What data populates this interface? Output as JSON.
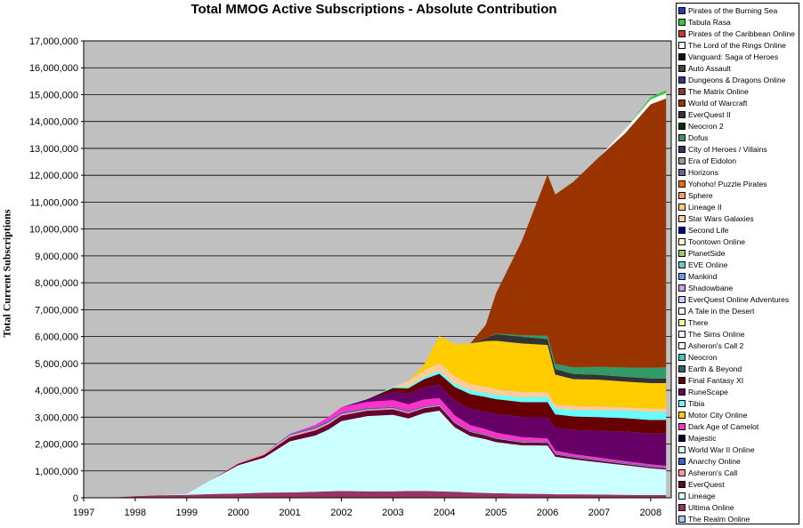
{
  "chart_data": {
    "type": "area",
    "stacked": true,
    "title": "Total MMOG Active Subscriptions -  Absolute Contribution",
    "xlabel": "",
    "ylabel": "Total Current Subscriptions",
    "xlim": [
      1997,
      2008.4
    ],
    "ylim": [
      0,
      17000000
    ],
    "grid": "horizontal",
    "plot_background": "#c0c0c0",
    "legend_position": "right",
    "yticks": [
      "0",
      "1,000,000",
      "2,000,000",
      "3,000,000",
      "4,000,000",
      "5,000,000",
      "6,000,000",
      "7,000,000",
      "8,000,000",
      "9,000,000",
      "10,000,000",
      "11,000,000",
      "12,000,000",
      "13,000,000",
      "14,000,000",
      "15,000,000",
      "16,000,000",
      "17,000,000"
    ],
    "xticks": [
      "1997",
      "1998",
      "1999",
      "2000",
      "2001",
      "2002",
      "2003",
      "2004",
      "2005",
      "2006",
      "2007",
      "2008"
    ],
    "legend": [
      {
        "name": "Pirates of the Burning Sea",
        "color": "#1f3fbf"
      },
      {
        "name": "Tabula Rasa",
        "color": "#33cc33"
      },
      {
        "name": "Pirates of the Caribbean Online",
        "color": "#cc3333"
      },
      {
        "name": "The Lord of the Rings Online",
        "color": "#ffffff"
      },
      {
        "name": "Vanguard: Saga of Heroes",
        "color": "#111111"
      },
      {
        "name": "Auto Assault",
        "color": "#444444"
      },
      {
        "name": "Dungeons & Dragons Online",
        "color": "#333399"
      },
      {
        "name": "The Matrix Online",
        "color": "#993333"
      },
      {
        "name": "World of Warcraft",
        "color": "#993300"
      },
      {
        "name": "EverQuest II",
        "color": "#333333"
      },
      {
        "name": "Neocron 2",
        "color": "#003300"
      },
      {
        "name": "Dofus",
        "color": "#339966"
      },
      {
        "name": "City of Heroes / Villains",
        "color": "#333366"
      },
      {
        "name": "Era of Eidolon",
        "color": "#999999"
      },
      {
        "name": "Horizons",
        "color": "#666699"
      },
      {
        "name": "Yohoho! Puzzle Pirates",
        "color": "#ff6600"
      },
      {
        "name": "Sphere",
        "color": "#ff9966"
      },
      {
        "name": "Lineage II",
        "color": "#ffcc66"
      },
      {
        "name": "Star Wars Galaxies",
        "color": "#ffcc99"
      },
      {
        "name": "Second Life",
        "color": "#000099"
      },
      {
        "name": "Toontown Online",
        "color": "#ffffcc"
      },
      {
        "name": "PlanetSide",
        "color": "#99cc66"
      },
      {
        "name": "EVE Online",
        "color": "#66cccc"
      },
      {
        "name": "Mankind",
        "color": "#6699ff"
      },
      {
        "name": "Shadowbane",
        "color": "#cc99ff"
      },
      {
        "name": "EverQuest Online Adventures",
        "color": "#ccccff"
      },
      {
        "name": "A Tale in the Desert",
        "color": "#ffffff"
      },
      {
        "name": "There",
        "color": "#ffff99"
      },
      {
        "name": "The Sims Online",
        "color": "#ffffff"
      },
      {
        "name": "Asheron's Call 2",
        "color": "#ffffff"
      },
      {
        "name": "Neocron",
        "color": "#33cccc"
      },
      {
        "name": "Earth & Beyond",
        "color": "#336666"
      },
      {
        "name": "Final Fantasy XI",
        "color": "#660000"
      },
      {
        "name": "RuneScape",
        "color": "#660066"
      },
      {
        "name": "Tibia",
        "color": "#66ffff"
      },
      {
        "name": "Motor City Online",
        "color": "#ffcc00"
      },
      {
        "name": "Dark Age of Camelot",
        "color": "#ff33cc"
      },
      {
        "name": "Majestic",
        "color": "#000033"
      },
      {
        "name": "World War II Online",
        "color": "#ccffff"
      },
      {
        "name": "Anarchy Online",
        "color": "#3366cc"
      },
      {
        "name": "Asheron's Call",
        "color": "#ff9999"
      },
      {
        "name": "EverQuest",
        "color": "#660033"
      },
      {
        "name": "Lineage",
        "color": "#ccffff"
      },
      {
        "name": "Ultima Online",
        "color": "#993366"
      },
      {
        "name": "The Realm Online",
        "color": "#99ccff"
      }
    ],
    "x": [
      1997.0,
      1997.5,
      1998.0,
      1998.5,
      1999.0,
      1999.5,
      2000.0,
      2000.5,
      2001.0,
      2001.5,
      2001.75,
      2002.0,
      2002.5,
      2003.0,
      2003.3,
      2003.6,
      2003.9,
      2004.2,
      2004.5,
      2004.8,
      2005.0,
      2005.5,
      2006.0,
      2006.15,
      2006.5,
      2007.0,
      2007.5,
      2008.0,
      2008.3
    ],
    "series": [
      {
        "name": "Ultima Online",
        "color": "#993366",
        "values": [
          0,
          0,
          60000,
          90000,
          110000,
          140000,
          160000,
          190000,
          200000,
          220000,
          240000,
          250000,
          240000,
          240000,
          250000,
          250000,
          240000,
          220000,
          200000,
          180000,
          170000,
          150000,
          140000,
          130000,
          130000,
          120000,
          110000,
          100000,
          100000
        ]
      },
      {
        "name": "Lineage",
        "color": "#ccffff",
        "values": [
          0,
          0,
          0,
          0,
          30000,
          550000,
          1050000,
          1300000,
          1900000,
          2100000,
          2300000,
          2600000,
          2800000,
          2850000,
          2700000,
          2900000,
          3000000,
          2400000,
          2100000,
          2000000,
          1900000,
          1800000,
          1800000,
          1400000,
          1300000,
          1200000,
          1100000,
          1000000,
          950000
        ]
      },
      {
        "name": "EverQuest",
        "color": "#660033",
        "values": [
          0,
          0,
          0,
          0,
          0,
          0,
          60000,
          100000,
          160000,
          190000,
          200000,
          210000,
          200000,
          200000,
          190000,
          180000,
          170000,
          160000,
          150000,
          140000,
          130000,
          110000,
          100000,
          80000,
          70000,
          60000,
          50000,
          50000,
          50000
        ]
      },
      {
        "name": "Asheron's Call",
        "color": "#ff9999",
        "values": [
          0,
          0,
          0,
          0,
          0,
          0,
          30000,
          60000,
          70000,
          70000,
          60000,
          55000,
          50000,
          50000,
          45000,
          40000,
          35000,
          30000,
          25000,
          20000,
          20000,
          20000,
          15000,
          15000,
          15000,
          15000,
          15000,
          15000,
          15000
        ]
      },
      {
        "name": "Anarchy Online",
        "color": "#3366cc",
        "values": [
          0,
          0,
          0,
          0,
          0,
          0,
          0,
          0,
          40000,
          60000,
          60000,
          55000,
          50000,
          45000,
          40000,
          35000,
          30000,
          30000,
          30000,
          30000,
          30000,
          30000,
          30000,
          30000,
          30000,
          30000,
          30000,
          30000,
          30000
        ]
      },
      {
        "name": "Dark Age of Camelot",
        "color": "#ff33cc",
        "values": [
          0,
          0,
          0,
          0,
          0,
          0,
          0,
          0,
          0,
          80000,
          150000,
          200000,
          230000,
          250000,
          250000,
          250000,
          240000,
          230000,
          200000,
          180000,
          170000,
          150000,
          120000,
          100000,
          80000,
          70000,
          60000,
          50000,
          50000
        ]
      },
      {
        "name": "RuneScape",
        "color": "#660066",
        "values": [
          0,
          0,
          0,
          0,
          0,
          0,
          0,
          0,
          0,
          0,
          0,
          0,
          100000,
          300000,
          400000,
          450000,
          500000,
          550000,
          600000,
          650000,
          700000,
          750000,
          800000,
          850000,
          900000,
          1000000,
          1100000,
          1150000,
          1200000
        ]
      },
      {
        "name": "Final Fantasy XI",
        "color": "#660000",
        "values": [
          0,
          0,
          0,
          0,
          0,
          0,
          0,
          0,
          0,
          0,
          0,
          0,
          0,
          150000,
          200000,
          300000,
          400000,
          500000,
          550000,
          550000,
          550000,
          550000,
          550000,
          500000,
          500000,
          500000,
          500000,
          500000,
          500000
        ]
      },
      {
        "name": "Tibia",
        "color": "#66ffff",
        "values": [
          0,
          0,
          0,
          0,
          0,
          0,
          0,
          0,
          0,
          0,
          0,
          0,
          20000,
          40000,
          60000,
          80000,
          100000,
          120000,
          140000,
          150000,
          160000,
          180000,
          200000,
          220000,
          240000,
          260000,
          280000,
          300000,
          300000
        ]
      },
      {
        "name": "Star Wars Galaxies",
        "color": "#ffcc99",
        "values": [
          0,
          0,
          0,
          0,
          0,
          0,
          0,
          0,
          0,
          0,
          0,
          0,
          0,
          0,
          200000,
          250000,
          300000,
          280000,
          250000,
          230000,
          210000,
          200000,
          180000,
          160000,
          150000,
          140000,
          130000,
          120000,
          120000
        ]
      },
      {
        "name": "Lineage II",
        "color": "#ffcc00",
        "values": [
          0,
          0,
          0,
          0,
          0,
          0,
          0,
          0,
          0,
          0,
          0,
          0,
          0,
          0,
          0,
          200000,
          1000000,
          1200000,
          1500000,
          1700000,
          1800000,
          1800000,
          1750000,
          1100000,
          1000000,
          1000000,
          950000,
          950000,
          950000
        ]
      },
      {
        "name": "EverQuest II",
        "color": "#333333",
        "values": [
          0,
          0,
          0,
          0,
          0,
          0,
          0,
          0,
          0,
          0,
          0,
          0,
          0,
          0,
          0,
          0,
          0,
          0,
          0,
          100000,
          250000,
          250000,
          220000,
          200000,
          190000,
          180000,
          175000,
          175000,
          175000
        ]
      },
      {
        "name": "Dofus",
        "color": "#339966",
        "values": [
          0,
          0,
          0,
          0,
          0,
          0,
          0,
          0,
          0,
          0,
          0,
          0,
          0,
          0,
          0,
          0,
          0,
          0,
          0,
          0,
          20000,
          60000,
          120000,
          200000,
          250000,
          300000,
          350000,
          400000,
          420000
        ]
      },
      {
        "name": "World of Warcraft",
        "color": "#993300",
        "values": [
          0,
          0,
          0,
          0,
          0,
          0,
          0,
          0,
          0,
          0,
          0,
          0,
          0,
          0,
          0,
          0,
          0,
          0,
          0,
          500000,
          1500000,
          3500000,
          6000000,
          6300000,
          6900000,
          7800000,
          8700000,
          9800000,
          10000000
        ]
      },
      {
        "name": "The Lord of the Rings Online",
        "color": "#ffffff",
        "values": [
          0,
          0,
          0,
          0,
          0,
          0,
          0,
          0,
          0,
          0,
          0,
          0,
          0,
          0,
          0,
          0,
          0,
          0,
          0,
          0,
          0,
          0,
          0,
          0,
          0,
          0,
          150000,
          180000,
          200000
        ]
      },
      {
        "name": "Tabula Rasa",
        "color": "#33cc33",
        "values": [
          0,
          0,
          0,
          0,
          0,
          0,
          0,
          0,
          0,
          0,
          0,
          0,
          0,
          0,
          0,
          0,
          0,
          0,
          0,
          0,
          0,
          0,
          0,
          0,
          0,
          0,
          0,
          80000,
          100000
        ]
      }
    ]
  }
}
